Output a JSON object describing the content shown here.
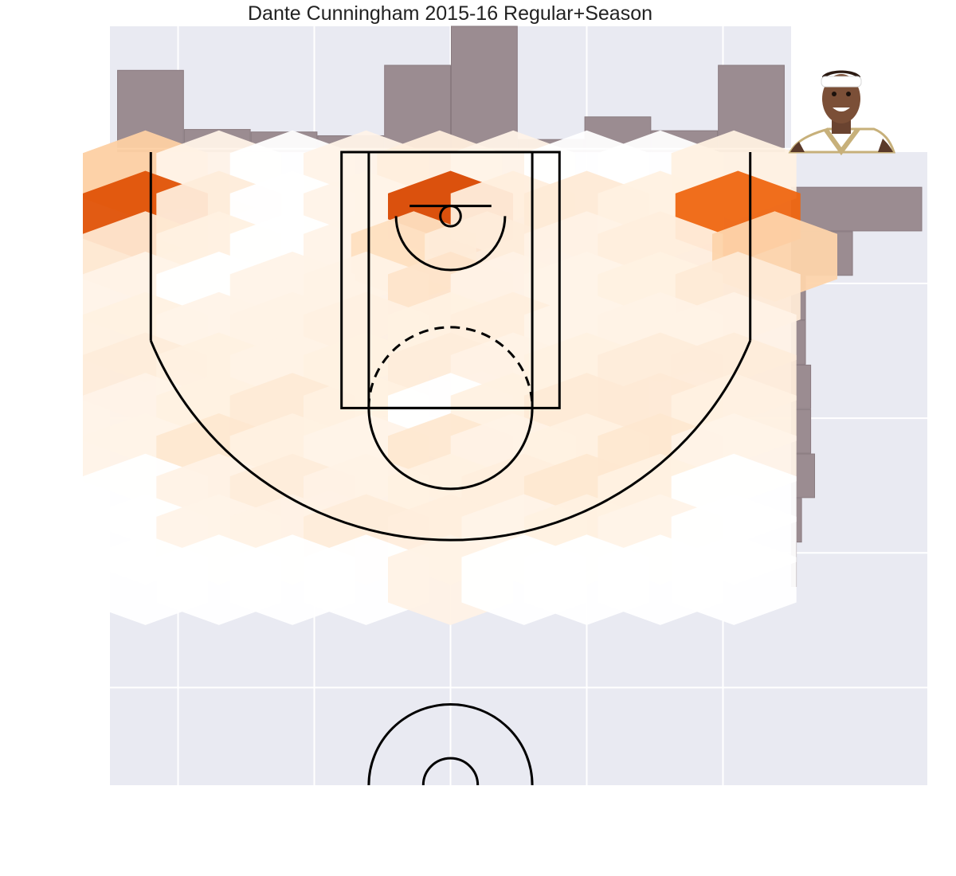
{
  "title": "Dante Cunningham 2015-16 Regular+Season",
  "colors": {
    "panel_background": "#e9eaf2",
    "grid": "#ffffff",
    "histogram_bar": "#9b8c91",
    "court_lines": "#000000",
    "hexbin_colormap": [
      "#fff5eb",
      "#fee6ce",
      "#fdd0a2",
      "#fdae6b",
      "#fd8d3c",
      "#f16913",
      "#d94801"
    ]
  },
  "player_photo": {
    "description_icon": "player-headshot",
    "jersey_color": "#ffffff",
    "trim_color": "#c7b07a",
    "headband_color": "#ffffff"
  },
  "chart_data": [
    {
      "type": "heatmap",
      "subtype": "hexbin",
      "title": "Dante Cunningham 2015-16 Regular+Season",
      "xlim": [
        -250,
        250
      ],
      "ylim": [
        422.5,
        -47.5
      ],
      "grid": true,
      "hexbin_gridsize": [
        9,
        12
      ],
      "hexbins": [
        {
          "x": -224,
          "y": -30,
          "v": 0.33
        },
        {
          "x": -170,
          "y": -30,
          "v": 0.02
        },
        {
          "x": -116,
          "y": -30,
          "v": 0.0
        },
        {
          "x": -62,
          "y": -30,
          "v": 0.02
        },
        {
          "x": -8,
          "y": -30,
          "v": 0.08
        },
        {
          "x": 46,
          "y": -30,
          "v": 0.02
        },
        {
          "x": 100,
          "y": -30,
          "v": 0.0
        },
        {
          "x": 154,
          "y": -30,
          "v": 0.0
        },
        {
          "x": 208,
          "y": -30,
          "v": 0.05
        },
        {
          "x": -224,
          "y": 0,
          "v": 0.95
        },
        {
          "x": -170,
          "y": 0,
          "v": 0.1
        },
        {
          "x": -116,
          "y": 0,
          "v": 0.0
        },
        {
          "x": -62,
          "y": 0,
          "v": 0.02
        },
        {
          "x": 0,
          "y": 0,
          "v": 1.0
        },
        {
          "x": 46,
          "y": 0,
          "v": 0.08
        },
        {
          "x": 100,
          "y": 0,
          "v": 0.12
        },
        {
          "x": 154,
          "y": 0,
          "v": 0.05
        },
        {
          "x": 211,
          "y": 0,
          "v": 0.85
        },
        {
          "x": -224,
          "y": 30,
          "v": 0.15
        },
        {
          "x": -170,
          "y": 30,
          "v": 0.05
        },
        {
          "x": -116,
          "y": 30,
          "v": 0.0
        },
        {
          "x": -62,
          "y": 30,
          "v": 0.02
        },
        {
          "x": -27,
          "y": 30,
          "v": 0.22
        },
        {
          "x": 27,
          "y": 30,
          "v": 0.1
        },
        {
          "x": 100,
          "y": 30,
          "v": 0.03
        },
        {
          "x": 154,
          "y": 30,
          "v": 0.08
        },
        {
          "x": 238,
          "y": 30,
          "v": 0.3
        },
        {
          "x": -224,
          "y": 60,
          "v": 0.02
        },
        {
          "x": -170,
          "y": 60,
          "v": 0.0
        },
        {
          "x": -116,
          "y": 60,
          "v": 0.02
        },
        {
          "x": -62,
          "y": 60,
          "v": 0.03
        },
        {
          "x": 0,
          "y": 60,
          "v": 0.18
        },
        {
          "x": 46,
          "y": 60,
          "v": 0.03
        },
        {
          "x": 100,
          "y": 60,
          "v": 0.02
        },
        {
          "x": 154,
          "y": 60,
          "v": 0.05
        },
        {
          "x": 211,
          "y": 60,
          "v": 0.12
        },
        {
          "x": -224,
          "y": 90,
          "v": 0.05
        },
        {
          "x": -170,
          "y": 90,
          "v": 0.02
        },
        {
          "x": -116,
          "y": 90,
          "v": 0.03
        },
        {
          "x": -62,
          "y": 90,
          "v": 0.06
        },
        {
          "x": 0,
          "y": 90,
          "v": 0.05
        },
        {
          "x": 46,
          "y": 90,
          "v": 0.08
        },
        {
          "x": 100,
          "y": 90,
          "v": 0.02
        },
        {
          "x": 154,
          "y": 90,
          "v": 0.03
        },
        {
          "x": 208,
          "y": 90,
          "v": 0.03
        },
        {
          "x": -224,
          "y": 120,
          "v": 0.1
        },
        {
          "x": -170,
          "y": 120,
          "v": 0.05
        },
        {
          "x": -116,
          "y": 120,
          "v": 0.03
        },
        {
          "x": -62,
          "y": 120,
          "v": 0.05
        },
        {
          "x": 0,
          "y": 120,
          "v": 0.1
        },
        {
          "x": 46,
          "y": 120,
          "v": 0.03
        },
        {
          "x": 100,
          "y": 120,
          "v": 0.05
        },
        {
          "x": 154,
          "y": 120,
          "v": 0.1
        },
        {
          "x": 208,
          "y": 120,
          "v": 0.1
        },
        {
          "x": -224,
          "y": 150,
          "v": 0.02
        },
        {
          "x": -170,
          "y": 150,
          "v": 0.05
        },
        {
          "x": -116,
          "y": 150,
          "v": 0.12
        },
        {
          "x": -62,
          "y": 150,
          "v": 0.05
        },
        {
          "x": 0,
          "y": 150,
          "v": 0.0
        },
        {
          "x": 46,
          "y": 150,
          "v": 0.05
        },
        {
          "x": 100,
          "y": 150,
          "v": 0.12
        },
        {
          "x": 154,
          "y": 150,
          "v": 0.12
        },
        {
          "x": 208,
          "y": 150,
          "v": 0.05
        },
        {
          "x": -224,
          "y": 180,
          "v": 0.02
        },
        {
          "x": -170,
          "y": 180,
          "v": 0.15
        },
        {
          "x": -116,
          "y": 180,
          "v": 0.05
        },
        {
          "x": -62,
          "y": 180,
          "v": 0.02
        },
        {
          "x": 0,
          "y": 180,
          "v": 0.15
        },
        {
          "x": 46,
          "y": 180,
          "v": 0.03
        },
        {
          "x": 100,
          "y": 180,
          "v": 0.05
        },
        {
          "x": 154,
          "y": 180,
          "v": 0.15
        },
        {
          "x": 208,
          "y": 180,
          "v": 0.02
        },
        {
          "x": -224,
          "y": 210,
          "v": 0.0
        },
        {
          "x": -170,
          "y": 210,
          "v": 0.03
        },
        {
          "x": -116,
          "y": 210,
          "v": 0.1
        },
        {
          "x": -62,
          "y": 210,
          "v": 0.03
        },
        {
          "x": 0,
          "y": 210,
          "v": 0.05
        },
        {
          "x": 54,
          "y": 210,
          "v": 0.08
        },
        {
          "x": 100,
          "y": 210,
          "v": 0.15
        },
        {
          "x": 154,
          "y": 210,
          "v": 0.05
        },
        {
          "x": 208,
          "y": 210,
          "v": 0.0
        },
        {
          "x": -224,
          "y": 240,
          "v": 0.0
        },
        {
          "x": -170,
          "y": 240,
          "v": 0.02
        },
        {
          "x": -116,
          "y": 240,
          "v": 0.03
        },
        {
          "x": -62,
          "y": 240,
          "v": 0.1
        },
        {
          "x": 0,
          "y": 240,
          "v": 0.08
        },
        {
          "x": 54,
          "y": 240,
          "v": 0.02
        },
        {
          "x": 100,
          "y": 240,
          "v": 0.05
        },
        {
          "x": 154,
          "y": 240,
          "v": 0.02
        },
        {
          "x": 208,
          "y": 240,
          "v": 0.0
        },
        {
          "x": -224,
          "y": 270,
          "v": 0.0
        },
        {
          "x": -170,
          "y": 270,
          "v": 0.0
        },
        {
          "x": -116,
          "y": 270,
          "v": 0.0
        },
        {
          "x": -62,
          "y": 270,
          "v": 0.0
        },
        {
          "x": 0,
          "y": 270,
          "v": 0.03
        },
        {
          "x": 54,
          "y": 270,
          "v": 0.0
        },
        {
          "x": 100,
          "y": 270,
          "v": 0.0
        },
        {
          "x": 154,
          "y": 270,
          "v": 0.0
        },
        {
          "x": 208,
          "y": 270,
          "v": 0.0
        }
      ]
    },
    {
      "type": "bar",
      "orientation": "vertical",
      "bin_edges": [
        -245,
        -196,
        -147,
        -98,
        -49,
        0,
        49,
        98,
        147,
        196,
        245
      ],
      "values": [
        0.65,
        0.18,
        0.16,
        0.13,
        0.69,
        1.0,
        0.1,
        0.28,
        0.17,
        0.69
      ],
      "xlim": [
        -250,
        250
      ]
    },
    {
      "type": "bar",
      "orientation": "horizontal",
      "bin_edges": [
        -22,
        11,
        44,
        77,
        110,
        143,
        176,
        209,
        242,
        275
      ],
      "values": [
        1.0,
        0.47,
        0.11,
        0.11,
        0.15,
        0.15,
        0.18,
        0.08,
        0.04
      ],
      "ylim": [
        -47.5,
        422.5
      ]
    }
  ]
}
